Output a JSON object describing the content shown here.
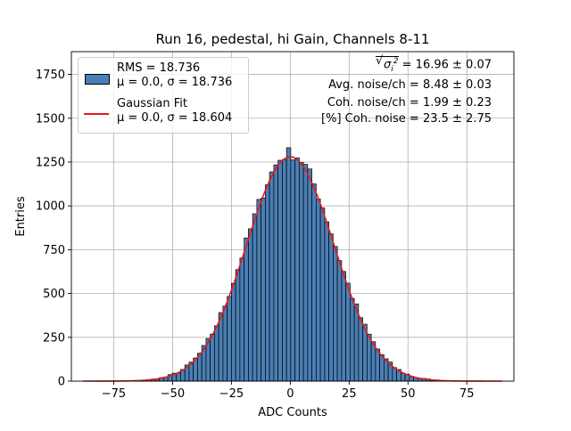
{
  "chart_data": {
    "type": "bar",
    "title": "Run 16, pedestal, hi Gain, Channels 8-11",
    "xlabel": "ADC Counts",
    "ylabel": "Entries",
    "xlim": [
      -93,
      95
    ],
    "ylim": [
      0,
      1880
    ],
    "grid": true,
    "legend_position": "top-left",
    "x_ticks": [
      -75,
      -50,
      -25,
      0,
      25,
      50,
      75
    ],
    "x_tick_labels": [
      "−75",
      "−50",
      "−25",
      "0",
      "25",
      "50",
      "75"
    ],
    "y_ticks": [
      0,
      250,
      500,
      750,
      1000,
      1250,
      1500,
      1750
    ],
    "y_tick_labels": [
      "0",
      "250",
      "500",
      "750",
      "1000",
      "1250",
      "1500",
      "1750"
    ],
    "histogram": {
      "name": "RMS = 18.736",
      "label_line2": "μ = 0.0, σ = 18.736",
      "bin_width": 1.8,
      "x_range": [
        -88,
        90
      ],
      "mean": 0.0,
      "sigma": 18.736,
      "peak": 1300
    },
    "fit": {
      "name": "Gaussian Fit",
      "label_line2": "μ = 0.0, σ = 18.604",
      "mean": 0.0,
      "sigma": 18.604,
      "amplitude": 1280,
      "x_range": [
        -88,
        90
      ]
    },
    "annotations": {
      "line1_value": " = 16.96 ± 0.07",
      "line2": "Avg. noise/ch = 8.48 ± 0.03",
      "line3": "Coh. noise/ch = 1.99 ± 0.23",
      "line4": "[%] Coh. noise = 23.5 ± 2.75"
    },
    "colors": {
      "bar_fill": "#4a7fb5",
      "bar_edge": "#000000",
      "fit_line": "#e31a1c",
      "grid": "#b0b0b0"
    }
  }
}
